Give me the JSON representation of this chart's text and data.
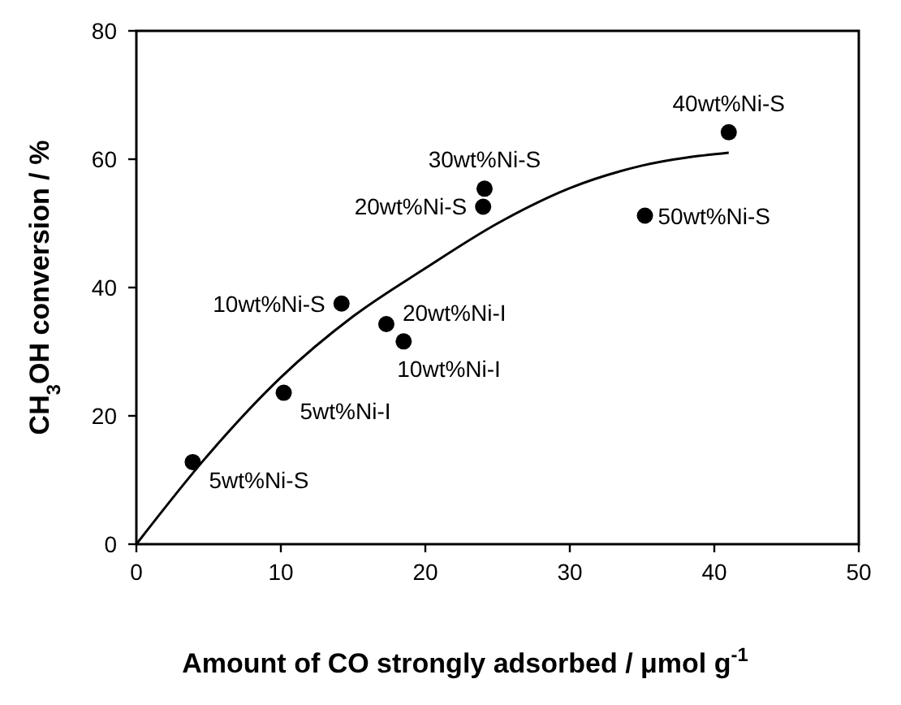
{
  "chart_data": {
    "type": "scatter",
    "xlabel": "Amount of CO strongly adsorbed / μmol g$^{-1}$",
    "ylabel": "CH$_{3}$OH conversion / %",
    "xlim": [
      0,
      50
    ],
    "xticks": [
      0,
      10,
      20,
      30,
      40,
      50
    ],
    "ylim": [
      0,
      80
    ],
    "yticks": [
      0,
      20,
      40,
      60,
      80
    ],
    "grid": false,
    "marker": "circle",
    "series": [
      {
        "color": "#000000",
        "x": [
          3.9,
          10.2,
          14.2,
          17.3,
          18.5,
          24.0,
          24.1,
          41.0,
          35.2
        ],
        "values": [
          12.8,
          23.6,
          37.5,
          34.3,
          31.6,
          52.6,
          55.4,
          64.2,
          51.2
        ]
      },
      {
        "type": "line",
        "color": "#000000",
        "marker": "none",
        "line_style": "solid",
        "x": [
          0,
          5,
          10,
          15,
          20,
          25,
          30,
          35,
          41
        ],
        "values": [
          0,
          14,
          26,
          35.5,
          43,
          50,
          55.5,
          59,
          61
        ]
      }
    ],
    "annotations": [
      {
        "text": "5wt%Ni-S",
        "x": 3.9,
        "y": 12.8
      },
      {
        "text": "5wt%Ni-I",
        "x": 10.2,
        "y": 23.6
      },
      {
        "text": "10wt%Ni-S",
        "x": 14.2,
        "y": 37.5
      },
      {
        "text": "20wt%Ni-I",
        "x": 17.3,
        "y": 34.3
      },
      {
        "text": "10wt%Ni-I",
        "x": 18.5,
        "y": 31.6
      },
      {
        "text": "20wt%Ni-S",
        "x": 24.0,
        "y": 52.6
      },
      {
        "text": "30wt%Ni-S",
        "x": 24.1,
        "y": 55.4
      },
      {
        "text": "40wt%Ni-S",
        "x": 41.0,
        "y": 64.2
      },
      {
        "text": "50wt%Ni-S",
        "x": 35.2,
        "y": 51.2
      }
    ]
  }
}
